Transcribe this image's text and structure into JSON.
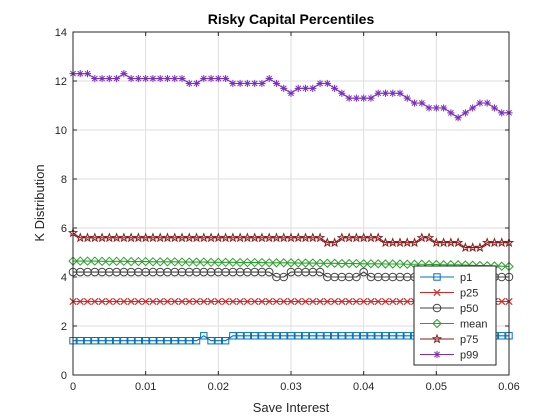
{
  "chart_data": {
    "type": "line",
    "title": "Risky Capital Percentiles",
    "xlabel": "Save Interest",
    "ylabel": "K Distribution",
    "xlim": [
      0,
      0.06
    ],
    "ylim": [
      0,
      14
    ],
    "grid": true,
    "legend_placement": "bottom-right",
    "x_tick_labels": [
      "0",
      "0.01",
      "0.02",
      "0.03",
      "0.04",
      "0.05",
      "0.06"
    ],
    "y_tick_labels": [
      "0",
      "2",
      "4",
      "6",
      "8",
      "10",
      "12",
      "14"
    ],
    "x": [
      0,
      0.001,
      0.002,
      0.003,
      0.004,
      0.005,
      0.006,
      0.007,
      0.008,
      0.009,
      0.01,
      0.011,
      0.012,
      0.013,
      0.014,
      0.015,
      0.016,
      0.017,
      0.018,
      0.019,
      0.02,
      0.021,
      0.022,
      0.023,
      0.024,
      0.025,
      0.026,
      0.027,
      0.028,
      0.029,
      0.03,
      0.031,
      0.032,
      0.033,
      0.034,
      0.035,
      0.036,
      0.037,
      0.038,
      0.039,
      0.04,
      0.041,
      0.042,
      0.043,
      0.044,
      0.045,
      0.046,
      0.047,
      0.048,
      0.049,
      0.05,
      0.051,
      0.052,
      0.053,
      0.054,
      0.055,
      0.056,
      0.057,
      0.058,
      0.059,
      0.06
    ],
    "series": [
      {
        "name": "p1",
        "color": "#0072bd",
        "marker": "square",
        "values": [
          1.4,
          1.4,
          1.4,
          1.4,
          1.4,
          1.4,
          1.4,
          1.4,
          1.4,
          1.4,
          1.4,
          1.4,
          1.4,
          1.4,
          1.4,
          1.4,
          1.4,
          1.4,
          1.6,
          1.4,
          1.4,
          1.4,
          1.6,
          1.6,
          1.6,
          1.6,
          1.6,
          1.6,
          1.6,
          1.6,
          1.6,
          1.6,
          1.6,
          1.6,
          1.6,
          1.6,
          1.6,
          1.6,
          1.6,
          1.6,
          1.6,
          1.6,
          1.6,
          1.6,
          1.6,
          1.6,
          1.6,
          1.6,
          1.6,
          1.6,
          1.6,
          1.6,
          1.6,
          1.6,
          1.6,
          1.4,
          1.4,
          1.6,
          1.6,
          1.6,
          1.6
        ]
      },
      {
        "name": "p25",
        "color": "#d62728",
        "marker": "x",
        "values": [
          3.0,
          3.0,
          3.0,
          3.0,
          3.0,
          3.0,
          3.0,
          3.0,
          3.0,
          3.0,
          3.0,
          3.0,
          3.0,
          3.0,
          3.0,
          3.0,
          3.0,
          3.0,
          3.0,
          3.0,
          3.0,
          3.0,
          3.0,
          3.0,
          3.0,
          3.0,
          3.0,
          3.0,
          3.0,
          3.0,
          3.0,
          3.0,
          3.0,
          3.0,
          3.0,
          3.0,
          3.0,
          3.0,
          3.0,
          3.0,
          3.0,
          3.0,
          3.0,
          3.0,
          3.0,
          3.0,
          3.0,
          3.0,
          3.0,
          3.2,
          3.0,
          3.0,
          3.0,
          3.0,
          3.0,
          3.0,
          3.0,
          3.0,
          3.0,
          3.0,
          3.0
        ]
      },
      {
        "name": "p50",
        "color": "#404040",
        "marker": "circle",
        "values": [
          4.2,
          4.2,
          4.2,
          4.2,
          4.2,
          4.2,
          4.2,
          4.2,
          4.2,
          4.2,
          4.2,
          4.2,
          4.2,
          4.2,
          4.2,
          4.2,
          4.2,
          4.2,
          4.2,
          4.2,
          4.2,
          4.2,
          4.2,
          4.2,
          4.2,
          4.2,
          4.2,
          4.2,
          4.0,
          4.0,
          4.2,
          4.2,
          4.2,
          4.2,
          4.2,
          4.0,
          4.0,
          4.0,
          4.0,
          4.0,
          4.2,
          4.0,
          4.0,
          4.0,
          4.0,
          4.0,
          4.0,
          4.0,
          4.2,
          4.2,
          4.0,
          4.0,
          4.0,
          4.0,
          4.2,
          4.2,
          4.2,
          4.2,
          4.0,
          4.0,
          4.0
        ]
      },
      {
        "name": "mean",
        "color": "#2ca02c",
        "marker": "diamond",
        "values": [
          4.65,
          4.65,
          4.65,
          4.65,
          4.64,
          4.64,
          4.64,
          4.64,
          4.63,
          4.63,
          4.63,
          4.62,
          4.62,
          4.62,
          4.62,
          4.61,
          4.61,
          4.61,
          4.61,
          4.6,
          4.6,
          4.6,
          4.6,
          4.59,
          4.59,
          4.59,
          4.59,
          4.58,
          4.58,
          4.58,
          4.58,
          4.57,
          4.57,
          4.57,
          4.56,
          4.56,
          4.56,
          4.55,
          4.55,
          4.55,
          4.54,
          4.54,
          4.54,
          4.53,
          4.53,
          4.53,
          4.52,
          4.52,
          4.52,
          4.51,
          4.51,
          4.5,
          4.5,
          4.5,
          4.49,
          4.48,
          4.47,
          4.46,
          4.45,
          4.44,
          4.43
        ]
      },
      {
        "name": "p75",
        "color": "#8b1a1a",
        "marker": "star",
        "values": [
          5.8,
          5.6,
          5.6,
          5.6,
          5.6,
          5.6,
          5.6,
          5.6,
          5.6,
          5.6,
          5.6,
          5.6,
          5.6,
          5.6,
          5.6,
          5.6,
          5.6,
          5.6,
          5.6,
          5.6,
          5.6,
          5.6,
          5.6,
          5.6,
          5.6,
          5.6,
          5.6,
          5.6,
          5.6,
          5.6,
          5.6,
          5.6,
          5.6,
          5.6,
          5.6,
          5.4,
          5.4,
          5.6,
          5.6,
          5.6,
          5.6,
          5.6,
          5.6,
          5.4,
          5.4,
          5.4,
          5.4,
          5.4,
          5.6,
          5.6,
          5.4,
          5.4,
          5.4,
          5.4,
          5.2,
          5.2,
          5.2,
          5.4,
          5.4,
          5.4,
          5.4
        ]
      },
      {
        "name": "p99",
        "color": "#7b2fbe",
        "marker": "asterisk",
        "values": [
          12.3,
          12.3,
          12.3,
          12.1,
          12.1,
          12.1,
          12.1,
          12.3,
          12.1,
          12.1,
          12.1,
          12.1,
          12.1,
          12.1,
          12.1,
          12.1,
          11.9,
          11.9,
          12.1,
          12.1,
          12.1,
          12.1,
          11.9,
          11.9,
          11.9,
          11.9,
          11.9,
          12.1,
          11.9,
          11.7,
          11.5,
          11.7,
          11.7,
          11.7,
          11.9,
          11.9,
          11.7,
          11.5,
          11.3,
          11.3,
          11.3,
          11.3,
          11.5,
          11.5,
          11.5,
          11.5,
          11.3,
          11.1,
          11.1,
          10.9,
          10.9,
          10.9,
          10.7,
          10.5,
          10.7,
          10.9,
          11.1,
          11.1,
          10.9,
          10.7,
          10.7
        ]
      }
    ]
  }
}
